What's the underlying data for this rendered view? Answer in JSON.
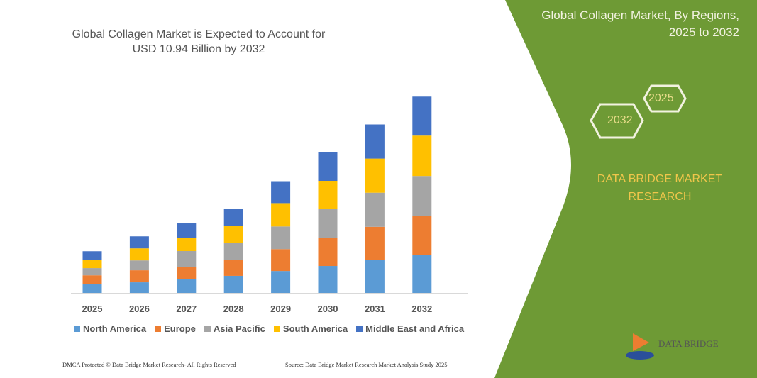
{
  "title": "Global Collagen Market is Expected to Account for USD 10.94 Billion by 2032",
  "side_panel": {
    "title_line1": "Global Collagen Market, By Regions,",
    "title_line2": "2025 to 2032",
    "hex_a": "2025",
    "hex_b": "2032",
    "brand_line1": "DATA BRIDGE MARKET",
    "brand_line2": "RESEARCH",
    "logo_text": "DATA BRIDGE",
    "color": "#6e9a35"
  },
  "footer": {
    "left": "DMCA Protected © Data Bridge Market Research- All Rights Reserved",
    "right": "Source: Data Bridge Market Research Market Analysis Study 2025"
  },
  "chart_data": {
    "type": "bar",
    "stacked": true,
    "title": "Global Collagen Market is Expected to Account for USD 10.94 Billion by 2032",
    "xlabel": "",
    "ylabel": "",
    "grid": false,
    "legend": "bottom",
    "y_axis_shown": false,
    "categories": [
      "2025",
      "2026",
      "2027",
      "2028",
      "2029",
      "2030",
      "2031",
      "2032"
    ],
    "series": [
      {
        "name": "North America",
        "color": "#5b9bd5",
        "values": [
          0.51,
          0.59,
          0.79,
          0.95,
          1.22,
          1.5,
          1.82,
          2.13
        ]
      },
      {
        "name": "Europe",
        "color": "#ed7d31",
        "values": [
          0.47,
          0.67,
          0.67,
          0.87,
          1.22,
          1.58,
          1.86,
          2.17
        ]
      },
      {
        "name": "Asia Pacific",
        "color": "#a5a5a5",
        "values": [
          0.4,
          0.55,
          0.87,
          0.95,
          1.26,
          1.58,
          1.9,
          2.21
        ]
      },
      {
        "name": "South America",
        "color": "#ffc000",
        "values": [
          0.47,
          0.67,
          0.75,
          0.95,
          1.3,
          1.58,
          1.9,
          2.25
        ]
      },
      {
        "name": "Middle East and Africa",
        "color": "#4472c4",
        "values": [
          0.47,
          0.67,
          0.79,
          0.95,
          1.22,
          1.58,
          1.9,
          2.17
        ]
      }
    ]
  }
}
